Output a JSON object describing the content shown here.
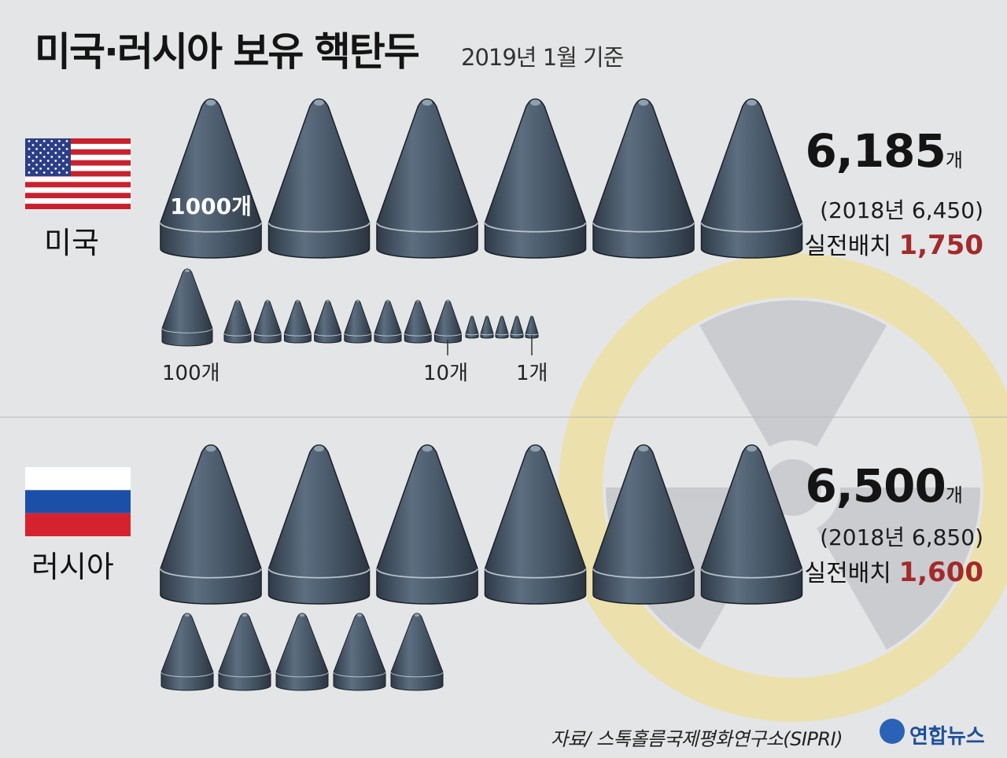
{
  "title": "미국·러시아 보유 핵탄두",
  "subtitle": "2019년 1월 기준",
  "chart_data": {
    "type": "pictogram",
    "title": "미국·러시아 보유 핵탄두",
    "subtitle": "2019년 1월 기준",
    "symbol_values": [
      {
        "label": "1000개",
        "value": 1000
      },
      {
        "label": "100개",
        "value": 100
      },
      {
        "label": "10개",
        "value": 10
      },
      {
        "label": "1개",
        "value": 1
      }
    ],
    "series": [
      {
        "name": "미국",
        "total": "6,185",
        "total_value": 6185,
        "unit": "개",
        "previous": "(2018년 6,450)",
        "previous_value": 6450,
        "deployed_label": "실전배치",
        "deployed": "1,750",
        "deployed_value": 1750,
        "breakdown": {
          "thousands": 6,
          "hundreds": 1,
          "tens": 8,
          "ones": 5
        }
      },
      {
        "name": "러시아",
        "total": "6,500",
        "total_value": 6500,
        "unit": "개",
        "previous": "(2018년 6,850)",
        "previous_value": 6850,
        "deployed_label": "실전배치",
        "deployed": "1,600",
        "deployed_value": 1600,
        "breakdown": {
          "thousands": 6,
          "hundreds": 5,
          "tens": 0,
          "ones": 0
        }
      }
    ]
  },
  "source": "자료/ 스톡홀름국제평화연구소(SIPRI)",
  "brand": "연합뉴스",
  "colors": {
    "warhead": "#4d5d6e",
    "deployed_value": "#a3292b",
    "radiation_ring": "#efe2a4",
    "radiation_blade": "#c6c8cb",
    "background": "#e4e5e6"
  },
  "icons": [
    "us-flag-icon",
    "russia-flag-icon",
    "warhead-icon",
    "radiation-symbol-icon",
    "yonhap-logo-icon"
  ]
}
